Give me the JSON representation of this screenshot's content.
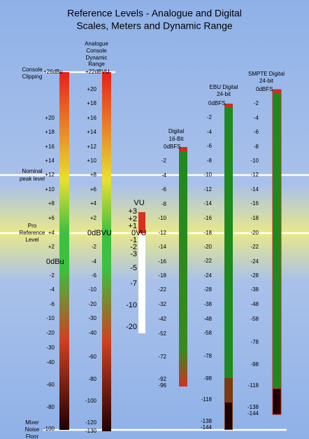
{
  "title": [
    "Reference Levels - Analogue and Digital",
    "Scales, Meters and Dynamic Range"
  ],
  "annotations": [
    {
      "lines": [
        "Console",
        "Clipping"
      ]
    },
    {
      "lines": [
        "Nominal",
        "peak level"
      ]
    },
    {
      "lines": [
        "Pro",
        "Reference",
        "Level"
      ]
    },
    {
      "lines": [
        "Mixer",
        "Noise",
        "Floor"
      ]
    }
  ],
  "scales": [
    {
      "labels": [
        "+26dBu",
        "+20",
        "+18",
        "+16",
        "+14",
        "+12",
        "+10",
        "+8",
        "+6",
        "+4",
        "+2",
        "0dBu",
        "-2",
        "-4",
        "-6",
        "-10",
        "-20",
        "-30",
        "-40",
        "-60",
        "-80",
        "-100"
      ]
    },
    {
      "header": [
        "Analogue",
        "Console",
        "Dynamic",
        "Range"
      ],
      "labels": [
        "+22dBVU",
        "+20",
        "+18",
        "+16",
        "+14",
        "+12",
        "+10",
        "+8",
        "+6",
        "+4",
        "+2",
        "0dBVU",
        "-2",
        "-4",
        "-6",
        "-10",
        "-20",
        "-30",
        "-40",
        "-60",
        "-80",
        "-100",
        "-120",
        "-130"
      ]
    },
    {
      "header": [
        "VU"
      ],
      "labels": [
        "+3",
        "+2",
        "+1",
        "0VU",
        "-1",
        "-2",
        "-3",
        "-5",
        "-7",
        "-10",
        "-20"
      ]
    },
    {
      "header": [
        "Digital",
        "16-Bit"
      ],
      "labels": [
        "0dBFS",
        "-2",
        "-4",
        "-6",
        "-8",
        "-10",
        "-12",
        "-14",
        "-16",
        "-18",
        "-22",
        "-32",
        "-42",
        "-52",
        "-72",
        "-92",
        "-96"
      ]
    },
    {
      "header": [
        "EBU Digital",
        "24-bit"
      ],
      "labels": [
        "0dBFS",
        "-2",
        "-4",
        "-6",
        "-8",
        "-10",
        "-12",
        "-14",
        "-16",
        "-18",
        "-20",
        "-22",
        "-24",
        "-28",
        "-38",
        "-48",
        "-58",
        "-78",
        "-98",
        "-118",
        "-138",
        "-144"
      ]
    },
    {
      "header": [
        "SMPTE Digital",
        "24-bit"
      ],
      "labels": [
        "0dBFS",
        "-2",
        "-4",
        "-6",
        "-8",
        "-10",
        "-12",
        "-14",
        "-16",
        "-18",
        "-20",
        "-22",
        "-24",
        "-28",
        "-38",
        "-48",
        "-58",
        "-78",
        "-98",
        "-118",
        "-138",
        "-144"
      ]
    }
  ]
}
